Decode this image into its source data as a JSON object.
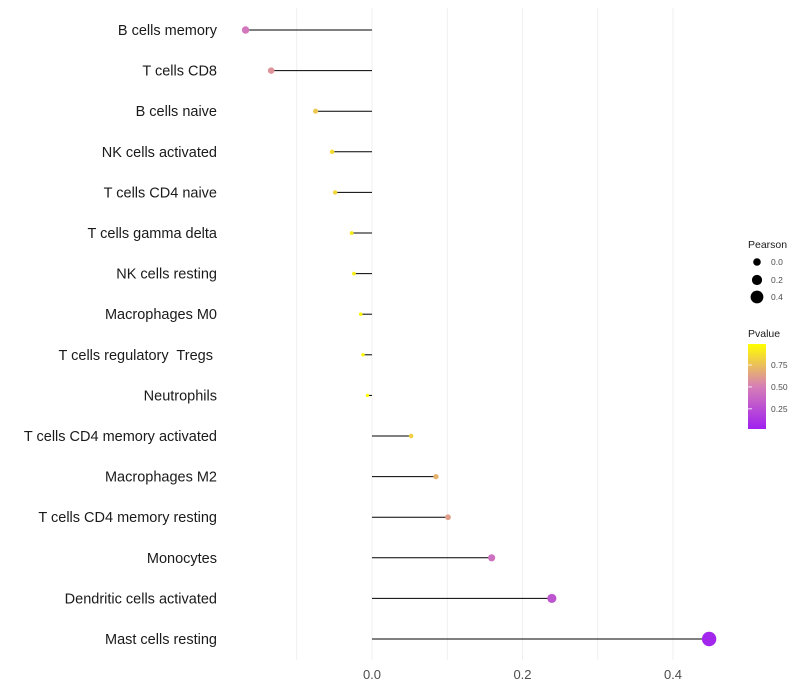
{
  "chart_data": {
    "type": "lollipop",
    "categories": [
      "B cells memory",
      "T cells CD8",
      "B cells naive",
      "NK cells activated",
      "T cells CD4 naive",
      "T cells gamma delta",
      "NK cells resting",
      "Macrophages M0",
      "T cells regulatory  Tregs ",
      "Neutrophils",
      "T cells CD4 memory activated",
      "Macrophages M2",
      "T cells CD4 memory resting",
      "Monocytes",
      "Dendritic cells activated",
      "Mast cells resting"
    ],
    "values": [
      -0.168,
      -0.134,
      -0.075,
      -0.053,
      -0.049,
      -0.027,
      -0.024,
      -0.015,
      -0.012,
      -0.006,
      0.052,
      0.085,
      0.101,
      0.159,
      0.239,
      0.448
    ],
    "pvalues": [
      0.46,
      0.58,
      0.78,
      0.86,
      0.84,
      0.92,
      0.93,
      0.96,
      0.97,
      0.99,
      0.82,
      0.7,
      0.62,
      0.42,
      0.28,
      0.03
    ],
    "xlim": [
      -0.2,
      0.48
    ],
    "xticks": [
      0.0,
      0.2,
      0.4
    ],
    "xtick_labels": [
      "0.0",
      "0.2",
      "0.4"
    ],
    "xlabel": "",
    "ylabel": "",
    "legend_size": {
      "title": "Pearson",
      "values": [
        0.0,
        0.2,
        0.4
      ],
      "labels": [
        "0.0",
        "0.2",
        "0.4"
      ]
    },
    "legend_color": {
      "title": "Pvalue",
      "ticks": [
        0.75,
        0.5,
        0.25
      ],
      "labels": [
        "0.75",
        "0.50",
        "0.25"
      ],
      "low_color": "#a020f0",
      "mid_color": "#d67fb6",
      "high_color": "#ffff00"
    }
  }
}
